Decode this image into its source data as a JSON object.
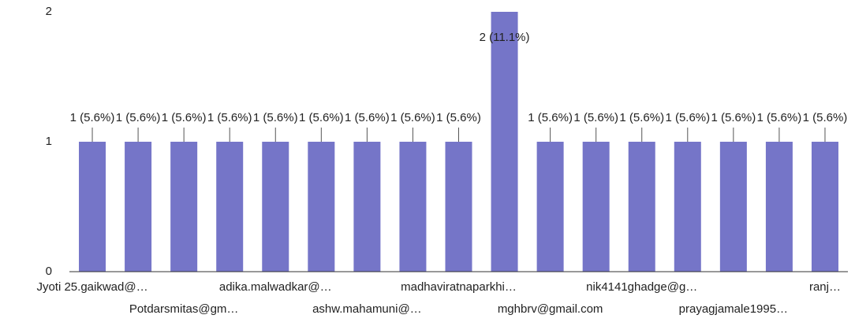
{
  "chart_data": {
    "type": "bar",
    "categories": [
      "Jyoti 25.gaikwad@…",
      null,
      "Potdarsmitas@gm…",
      null,
      "adika.malwadkar@…",
      null,
      "ashw.mahamuni@…",
      null,
      "madhaviratnaparkhi…",
      null,
      "mghbrv@gmail.com",
      null,
      "nik4141ghadge@g…",
      null,
      "prayagjamale1995…",
      null,
      "ranj…"
    ],
    "values": [
      1,
      1,
      1,
      1,
      1,
      1,
      1,
      1,
      1,
      2,
      1,
      1,
      1,
      1,
      1,
      1,
      1
    ],
    "value_labels": [
      "1 (5.6%)",
      "1 (5.6%)",
      "1 (5.6%)",
      "1 (5.6%)",
      "1 (5.6%)",
      "1 (5.6%)",
      "1 (5.6%)",
      "1 (5.6%)",
      "1 (5.6%)",
      "2 (11.1%)",
      "1 (5.6%)",
      "1 (5.6%)",
      "1 (5.6%)",
      "1 (5.6%)",
      "1 (5.6%)",
      "1 (5.6%)",
      "1 (5.6%)"
    ],
    "color": "#7575c8",
    "ylim": [
      0,
      2
    ],
    "yticks": [
      0,
      1,
      2
    ],
    "grid": false
  }
}
